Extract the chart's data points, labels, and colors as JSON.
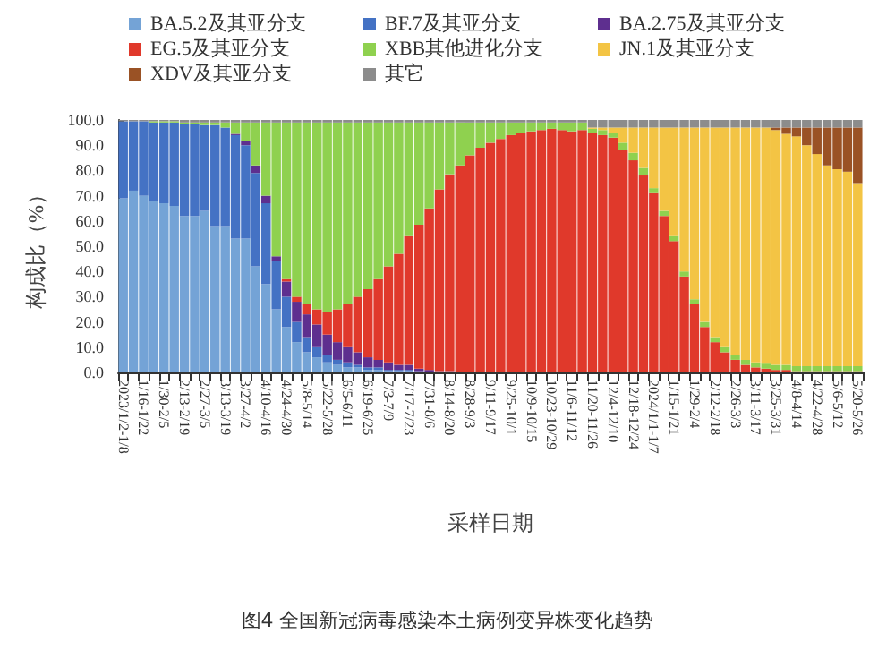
{
  "chart_data": {
    "type": "bar",
    "stacked": true,
    "title": "图4 全国新冠病毒感染本土病例变异株变化趋势",
    "xlabel": "采样日期",
    "ylabel": "构成比（%）",
    "categories": [
      "2023/1/2-1/8",
      null,
      "1/16-1/22",
      null,
      "1/30-2/5",
      null,
      "2/13-2/19",
      null,
      "2/27-3/5",
      null,
      "3/13-3/19",
      null,
      "3/27-4/2",
      null,
      "4/10-4/16",
      null,
      "4/24-4/30",
      null,
      "5/8-5/14",
      null,
      "5/22-5/28",
      null,
      "6/5-6/11",
      null,
      "6/19-6/25",
      null,
      "7/3-7/9",
      null,
      "7/17-7/23",
      null,
      "7/31-8/6",
      null,
      "8/14-8/20",
      null,
      "8/28-9/3",
      null,
      "9/11-9/17",
      null,
      "9/25-10/1",
      null,
      "10/9-10/15",
      null,
      "10/23-10/29",
      null,
      "11/6-11/12",
      null,
      "11/20-11/26",
      null,
      "12/4-12/10",
      null,
      "12/18-12/24",
      null,
      "2024/1/1-1/7",
      null,
      "1/15-1/21",
      null,
      "1/29-2/4",
      null,
      "2/12-2/18",
      null,
      "2/26-3/3",
      null,
      "3/11-3/17",
      null,
      "3/25-3/31",
      null,
      "4/8-4/14",
      null,
      "4/22-4/28",
      null,
      "5/6-5/12",
      null,
      "5/20-5/26"
    ],
    "series": [
      {
        "name": "BA.5.2及其亚分支",
        "color": "#74a3d6",
        "values": [
          69,
          72,
          70,
          68,
          67,
          66,
          62,
          62,
          64,
          58,
          58,
          53,
          53,
          42,
          35,
          25,
          18,
          12,
          8,
          6,
          4,
          3,
          2,
          2,
          1,
          1,
          0.5,
          0.5,
          0.5,
          0,
          0,
          0,
          0,
          0,
          0,
          0,
          0,
          0,
          0,
          0,
          0,
          0,
          0,
          0,
          0,
          0,
          0,
          0,
          0,
          0,
          0,
          0,
          0,
          0,
          0,
          0,
          0,
          0,
          0,
          0,
          0,
          0,
          0,
          0,
          0,
          0,
          0,
          0,
          0,
          0,
          0,
          0,
          0
        ]
      },
      {
        "name": "BF.7及其亚分支",
        "color": "#4472c4",
        "values": [
          30.5,
          27.5,
          29.5,
          31,
          32,
          33,
          36.5,
          36.5,
          34,
          40,
          39,
          41,
          37,
          37,
          32,
          19,
          12,
          8,
          6,
          4,
          3,
          2,
          2,
          1,
          1,
          1,
          0.5,
          0.5,
          0.5,
          0.5,
          0,
          0,
          0,
          0,
          0,
          0,
          0,
          0,
          0,
          0,
          0,
          0,
          0,
          0,
          0,
          0,
          0,
          0,
          0,
          0,
          0,
          0,
          0,
          0,
          0,
          0,
          0,
          0,
          0,
          0,
          0,
          0,
          0,
          0,
          0,
          0,
          0,
          0,
          0,
          0,
          0,
          0,
          0
        ]
      },
      {
        "name": "BA.2.75及其亚分支",
        "color": "#5e2f8f",
        "values": [
          0,
          0,
          0,
          0,
          0,
          0,
          0,
          0,
          0,
          0,
          0,
          0.5,
          1.5,
          3,
          3,
          2,
          6,
          8,
          9,
          9,
          8,
          7,
          6,
          5,
          4,
          3,
          3,
          2,
          2,
          1,
          1,
          0.5,
          0.5,
          0,
          0,
          0,
          0,
          0,
          0,
          0,
          0,
          0,
          0,
          0,
          0,
          0,
          0,
          0,
          0,
          0,
          0,
          0,
          0,
          0,
          0,
          0,
          0,
          0,
          0,
          0,
          0,
          0,
          0,
          0,
          0,
          0,
          0,
          0,
          0,
          0,
          0,
          0,
          0
        ]
      },
      {
        "name": "EG.5及其亚分支",
        "color": "#e0392b",
        "values": [
          0,
          0,
          0,
          0,
          0,
          0,
          0,
          0,
          0,
          0,
          0,
          0,
          0,
          0,
          0,
          0,
          1,
          2,
          4,
          6,
          9,
          13,
          17,
          22,
          27,
          32,
          38,
          44,
          51,
          57,
          64,
          72,
          78,
          82,
          86,
          89,
          91,
          92.5,
          94,
          95,
          95.5,
          96,
          96.5,
          96,
          95.5,
          96,
          95,
          94,
          93,
          88,
          84,
          78,
          71,
          62,
          52,
          38,
          27,
          18,
          12,
          8,
          5,
          3,
          2,
          1.5,
          1,
          1,
          0.5,
          0.5,
          0.5,
          0.5,
          0.5,
          0.5,
          0.5
        ]
      },
      {
        "name": "XBB其他进化分支",
        "color": "#8fd14f",
        "values": [
          0,
          0,
          0,
          0.5,
          0.5,
          0.5,
          0.5,
          0.5,
          1,
          1,
          2,
          4.5,
          7.5,
          17,
          29,
          53,
          62,
          69,
          72,
          74,
          75,
          74,
          72,
          69,
          66,
          62,
          57,
          52,
          45,
          40.5,
          34,
          26.5,
          20.5,
          17,
          13,
          10,
          8,
          6.5,
          5,
          4,
          3.5,
          3,
          2.5,
          3,
          3.5,
          3,
          1.5,
          2,
          2,
          3,
          3,
          3,
          2,
          2,
          2,
          2,
          2,
          2,
          2,
          2,
          2,
          2,
          2,
          2,
          2,
          2,
          2,
          2,
          2,
          2,
          2,
          2,
          2
        ]
      },
      {
        "name": "JN.1及其亚分支",
        "color": "#f3c444",
        "values": [
          0,
          0,
          0,
          0,
          0,
          0,
          0,
          0,
          0,
          0,
          0,
          0,
          0,
          0,
          0,
          0,
          0,
          0,
          0,
          0,
          0,
          0,
          0,
          0,
          0,
          0,
          0,
          0,
          0,
          0,
          0,
          0,
          0,
          0,
          0,
          0,
          0,
          0,
          0,
          0,
          0,
          0,
          0,
          0,
          0,
          0,
          0.5,
          1,
          2,
          6,
          10,
          16,
          24,
          33,
          43,
          57,
          68,
          77,
          83,
          87,
          90,
          92,
          93,
          93.5,
          93,
          91.5,
          91,
          87.5,
          84,
          79.5,
          78,
          77,
          72.5
        ]
      },
      {
        "name": "XDV及其亚分支",
        "color": "#9a5225",
        "values": [
          0,
          0,
          0,
          0,
          0,
          0,
          0,
          0,
          0,
          0,
          0,
          0,
          0,
          0,
          0,
          0,
          0,
          0,
          0,
          0,
          0,
          0,
          0,
          0,
          0,
          0,
          0,
          0,
          0,
          0,
          0,
          0,
          0,
          0,
          0,
          0,
          0,
          0,
          0,
          0,
          0,
          0,
          0,
          0,
          0,
          0,
          0,
          0,
          0,
          0,
          0,
          0,
          0,
          0,
          0,
          0,
          0,
          0,
          0,
          0,
          0,
          0,
          0,
          0,
          1,
          2.5,
          3.5,
          7,
          10.5,
          15,
          16.5,
          17.5,
          22
        ]
      },
      {
        "name": "其它",
        "color": "#8c8c8c",
        "values": [
          0.5,
          0.5,
          0.5,
          0.5,
          0.5,
          0.5,
          1,
          1,
          1,
          1,
          1,
          1,
          1,
          1,
          1,
          1,
          1,
          1,
          1,
          1,
          1,
          1,
          1,
          1,
          1,
          1,
          1,
          1,
          1,
          1,
          1,
          1,
          1,
          1,
          1,
          1,
          1,
          1,
          1,
          1,
          1,
          1,
          1,
          1,
          1,
          1,
          3,
          3,
          3,
          3,
          3,
          3,
          3,
          3,
          3,
          3,
          3,
          3,
          3,
          3,
          3,
          3,
          3,
          3,
          3,
          3,
          3,
          3,
          3,
          3,
          3,
          3,
          3
        ]
      }
    ],
    "ylim": [
      0,
      100
    ],
    "yticks": [
      {
        "value": 0,
        "label": "0.0"
      },
      {
        "value": 10,
        "label": "10.0"
      },
      {
        "value": 20,
        "label": "20.0"
      },
      {
        "value": 30,
        "label": "30.0"
      },
      {
        "value": 40,
        "label": "40.0"
      },
      {
        "value": 50,
        "label": "50.0"
      },
      {
        "value": 60,
        "label": "60.0"
      },
      {
        "value": 70,
        "label": "70.0"
      },
      {
        "value": 80,
        "label": "80.0"
      },
      {
        "value": 90,
        "label": "90.0"
      },
      {
        "value": 100,
        "label": "100.0"
      }
    ],
    "grid": false,
    "legend": "top"
  }
}
